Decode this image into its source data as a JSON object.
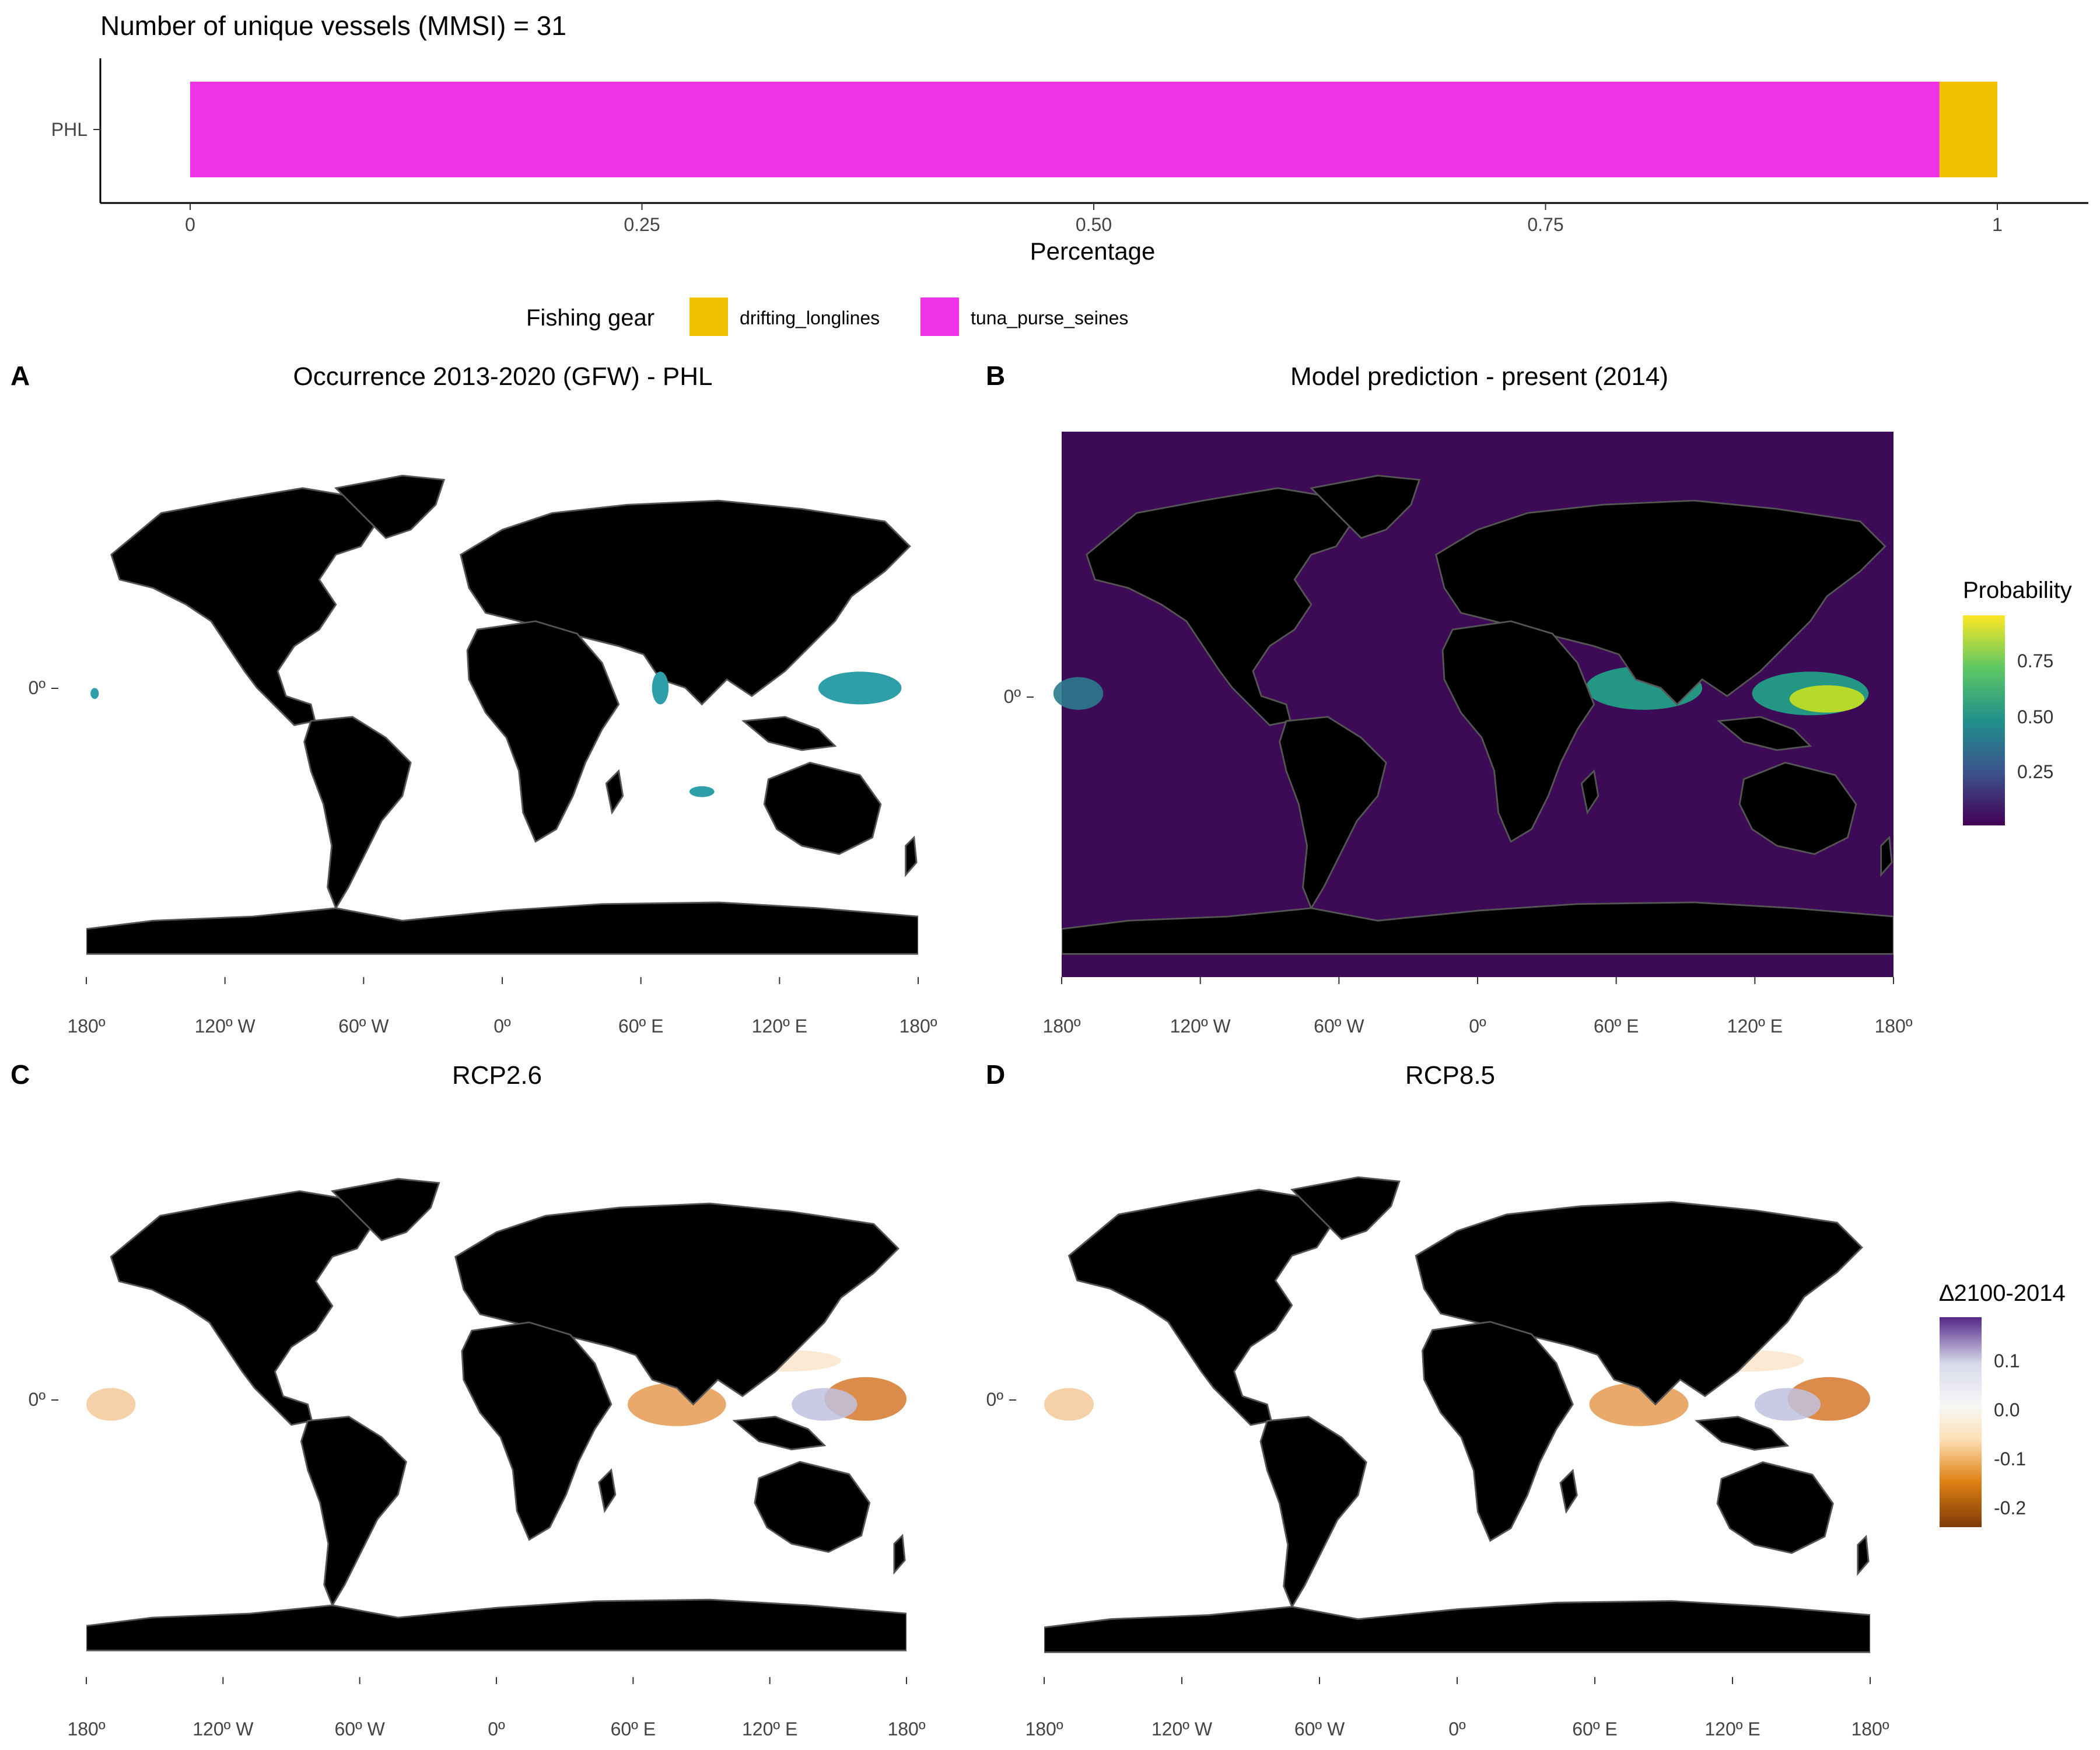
{
  "top_chart": {
    "title": "Number of unique vessels (MMSI) = 31",
    "xlabel": "Percentage",
    "category": "PHL",
    "ticks": [
      "0",
      "0.25",
      "0.50",
      "0.75",
      "1"
    ],
    "legend_title": "Fishing gear",
    "legend_items": [
      {
        "label": "drifting_longlines",
        "color": "#F2C200"
      },
      {
        "label": "tuna_purse_seines",
        "color": "#F032E6"
      }
    ]
  },
  "panels": [
    {
      "letter": "A",
      "title": "Occurrence 2013-2020 (GFW) - PHL",
      "background": "white"
    },
    {
      "letter": "B",
      "title": "Model prediction - present (2014)",
      "background": "viridis"
    },
    {
      "letter": "C",
      "title": "RCP2.6",
      "background": "white"
    },
    {
      "letter": "D",
      "title": "RCP8.5",
      "background": "white"
    }
  ],
  "map_axis": {
    "lon_ticks": [
      "180º",
      "120º W",
      "60º W",
      "0º",
      "60º E",
      "120º E",
      "180º"
    ],
    "lat_tick": "0º"
  },
  "legend_probability": {
    "title": "Probability",
    "ticks": [
      "0.75",
      "0.50",
      "0.25"
    ],
    "colors": [
      "#440154",
      "#3B528B",
      "#21908C",
      "#5DC863",
      "#FDE725"
    ]
  },
  "legend_delta": {
    "title": "∆2100-2014",
    "ticks": [
      "0.1",
      "0.0",
      "-0.1",
      "-0.2"
    ],
    "colors": [
      "#7F3B08",
      "#E08214",
      "#FEE0B6",
      "#F7F7F7",
      "#D8DAEB",
      "#542788"
    ]
  },
  "chart_data": [
    {
      "type": "bar",
      "orientation": "horizontal",
      "stacked": true,
      "title": "Number of unique vessels (MMSI) = 31",
      "xlabel": "Percentage",
      "ylabel": "",
      "categories": [
        "PHL"
      ],
      "xlim": [
        0,
        1
      ],
      "series": [
        {
          "name": "tuna_purse_seines",
          "values": [
            0.968
          ],
          "color": "#F032E6"
        },
        {
          "name": "drifting_longlines",
          "values": [
            0.032
          ],
          "color": "#F2C200"
        }
      ],
      "legend": "bottom"
    },
    {
      "type": "heatmap",
      "title": "Occurrence 2013-2020 (GFW) - PHL",
      "xlim": [
        -180,
        180
      ],
      "note_colors": {
        "occurrence": "#2E9EA8"
      }
    },
    {
      "type": "heatmap",
      "title": "Model prediction - present (2014)",
      "xlim": [
        -180,
        180
      ],
      "color_scale": "Probability",
      "scale_range": [
        0,
        1
      ]
    },
    {
      "type": "heatmap",
      "title": "RCP2.6",
      "xlim": [
        -180,
        180
      ],
      "color_scale": "∆2100-2014",
      "scale_range": [
        -0.25,
        0.18
      ]
    },
    {
      "type": "heatmap",
      "title": "RCP8.5",
      "xlim": [
        -180,
        180
      ],
      "color_scale": "∆2100-2014",
      "scale_range": [
        -0.25,
        0.18
      ]
    }
  ]
}
